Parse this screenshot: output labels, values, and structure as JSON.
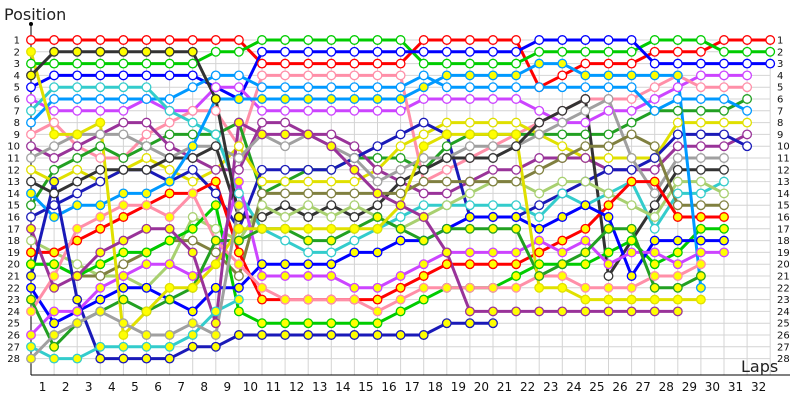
{
  "chart_data": {
    "type": "line",
    "ylabel": "Position",
    "xlabel": "Laps",
    "xlim": [
      0,
      32
    ],
    "ylim": [
      1,
      28
    ],
    "y_inverted": true,
    "grid": true,
    "x_tick_labels": [
      "1",
      "2",
      "3",
      "4",
      "5",
      "6",
      "7",
      "8",
      "9",
      "10",
      "11",
      "12",
      "13",
      "14",
      "15",
      "16",
      "17",
      "18",
      "19",
      "20",
      "21",
      "22",
      "23",
      "24",
      "25",
      "26",
      "27",
      "28",
      "29",
      "30",
      "31",
      "32"
    ],
    "y_tick_labels": [
      "1",
      "2",
      "3",
      "4",
      "5",
      "6",
      "7",
      "8",
      "9",
      "10",
      "11",
      "12",
      "13",
      "14",
      "15",
      "16",
      "17",
      "18",
      "19",
      "20",
      "21",
      "22",
      "23",
      "24",
      "25",
      "26",
      "27",
      "28"
    ],
    "series": [
      {
        "color": "#ff0000",
        "marker": "open",
        "positions": [
          1,
          1,
          1,
          1,
          1,
          1,
          1,
          1,
          1,
          1,
          3,
          3,
          3,
          3,
          3,
          3,
          3,
          1,
          1,
          1,
          1,
          1,
          5,
          4,
          3,
          3,
          3,
          2,
          2,
          2,
          1,
          1,
          1
        ]
      },
      {
        "color": "#00cc00",
        "marker": "open",
        "positions": [
          3,
          3,
          3,
          3,
          3,
          3,
          3,
          3,
          2,
          2,
          1,
          1,
          1,
          1,
          1,
          1,
          1,
          3,
          3,
          3,
          3,
          3,
          2,
          2,
          2,
          2,
          2,
          1,
          1,
          1,
          2,
          2,
          2
        ]
      },
      {
        "color": "#0000ff",
        "marker": "open",
        "positions": [
          5,
          4,
          4,
          4,
          4,
          4,
          4,
          4,
          5,
          6,
          2,
          2,
          2,
          2,
          2,
          2,
          2,
          2,
          2,
          2,
          2,
          2,
          1,
          1,
          1,
          1,
          1,
          3,
          3,
          3,
          3,
          3,
          3
        ]
      },
      {
        "color": "#cc44ff",
        "marker": "open",
        "positions": [
          6,
          7,
          7,
          7,
          7,
          6,
          7,
          7,
          5,
          5,
          7,
          7,
          7,
          7,
          7,
          7,
          7,
          6,
          6,
          6,
          6,
          6,
          7,
          8,
          8,
          7,
          7,
          6,
          5,
          4,
          4,
          4
        ]
      },
      {
        "color": "#ff8fa8",
        "marker": "open",
        "positions": [
          9,
          8,
          10,
          11,
          11,
          9,
          8,
          7,
          7,
          10,
          4,
          4,
          4,
          4,
          4,
          4,
          4,
          13,
          12,
          11,
          10,
          9,
          8,
          7,
          6,
          6,
          6,
          5,
          4,
          5,
          5,
          5
        ]
      },
      {
        "color": "#22a022",
        "marker": "open",
        "positions": [
          15,
          12,
          11,
          10,
          11,
          10,
          9,
          9,
          9,
          8,
          14,
          13,
          12,
          12,
          11,
          11,
          11,
          12,
          10,
          9,
          9,
          9,
          9,
          9,
          9,
          9,
          8,
          7,
          7,
          7,
          7,
          6
        ]
      },
      {
        "color": "#0099ff",
        "marker": "open",
        "positions": [
          8,
          6,
          6,
          6,
          6,
          6,
          6,
          5,
          4,
          4,
          5,
          5,
          5,
          5,
          5,
          5,
          5,
          4,
          5,
          5,
          5,
          5,
          5,
          5,
          5,
          5,
          5,
          7,
          6,
          6,
          6,
          7
        ]
      },
      {
        "color": "#e0e000",
        "marker": "open",
        "positions": [
          12,
          13,
          12,
          13,
          12,
          11,
          12,
          13,
          12,
          10,
          13,
          13,
          13,
          13,
          13,
          12,
          10,
          9,
          8,
          8,
          8,
          8,
          9,
          10,
          11,
          11,
          11,
          11,
          8,
          8,
          8,
          8
        ]
      },
      {
        "color": "#993399",
        "marker": "open",
        "positions": [
          10,
          11,
          10,
          9,
          8,
          8,
          10,
          11,
          12,
          12,
          8,
          8,
          9,
          9,
          10,
          12,
          13,
          14,
          14,
          13,
          12,
          12,
          11,
          11,
          11,
          12,
          12,
          12,
          10,
          10,
          10,
          9
        ]
      },
      {
        "color": "#1a1ab8",
        "marker": "open",
        "positions": [
          16,
          15,
          14,
          13,
          12,
          12,
          13,
          12,
          14,
          17,
          12,
          12,
          12,
          12,
          11,
          10,
          9,
          8,
          9,
          16,
          16,
          16,
          15,
          14,
          13,
          12,
          12,
          11,
          9,
          9,
          9,
          10
        ]
      },
      {
        "color": "#a0a0a0",
        "marker": "open",
        "positions": [
          11,
          10,
          9,
          9,
          9,
          10,
          11,
          10,
          10,
          11,
          9,
          10,
          9,
          10,
          11,
          13,
          12,
          11,
          11,
          10,
          10,
          10,
          9,
          8,
          7,
          6,
          11,
          14,
          11,
          11,
          11
        ]
      },
      {
        "color": "#333333",
        "marker": "open",
        "positions": [
          13,
          14,
          13,
          12,
          12,
          12,
          11,
          11,
          10,
          16,
          16,
          15,
          16,
          15,
          16,
          15,
          13,
          12,
          11,
          11,
          11,
          10,
          8,
          7,
          6,
          21,
          18,
          15,
          12,
          12,
          12
        ]
      },
      {
        "color": "#33cccc",
        "marker": "open",
        "positions": [
          7,
          5,
          5,
          5,
          5,
          5,
          7,
          8,
          9,
          14,
          17,
          18,
          19,
          19,
          18,
          17,
          16,
          15,
          15,
          15,
          15,
          15,
          16,
          14,
          15,
          14,
          13,
          17,
          14,
          14,
          13
        ]
      },
      {
        "color": "#a8d070",
        "marker": "open",
        "positions": [
          18,
          19,
          20,
          21,
          21,
          22,
          20,
          16,
          17,
          18,
          15,
          16,
          15,
          16,
          15,
          16,
          17,
          16,
          15,
          14,
          13,
          13,
          14,
          13,
          13,
          14,
          15,
          16,
          13,
          13,
          14
        ]
      },
      {
        "color": "#808040",
        "marker": "open",
        "positions": [
          20,
          20,
          21,
          21,
          20,
          19,
          18,
          18,
          19,
          21,
          14,
          14,
          14,
          14,
          14,
          14,
          14,
          13,
          13,
          13,
          13,
          13,
          12,
          11,
          10,
          10,
          9,
          10,
          15,
          15,
          15
        ]
      },
      {
        "color": "#ff0000",
        "marker": "filled",
        "positions": [
          19,
          19,
          18,
          17,
          16,
          15,
          14,
          14,
          13,
          19,
          23,
          23,
          23,
          23,
          23,
          23,
          22,
          21,
          20,
          20,
          20,
          20,
          19,
          18,
          17,
          15,
          13,
          13,
          16,
          16,
          16
        ]
      },
      {
        "color": "#00cc00",
        "marker": "filled",
        "positions": [
          20,
          20,
          21,
          20,
          19,
          19,
          18,
          17,
          15,
          24,
          25,
          25,
          25,
          25,
          25,
          25,
          24,
          23,
          22,
          22,
          22,
          21,
          20,
          20,
          20,
          19,
          18,
          20,
          19,
          17,
          17
        ]
      },
      {
        "color": "#0000ff",
        "marker": "filled",
        "positions": [
          22,
          25,
          24,
          23,
          22,
          22,
          23,
          24,
          22,
          22,
          20,
          20,
          20,
          20,
          19,
          19,
          18,
          18,
          17,
          16,
          16,
          16,
          17,
          16,
          15,
          16,
          21,
          18,
          18,
          18,
          18
        ]
      },
      {
        "color": "#cc44ff",
        "marker": "filled",
        "positions": [
          26,
          24,
          24,
          22,
          21,
          20,
          20,
          21,
          20,
          13,
          21,
          21,
          21,
          21,
          22,
          22,
          21,
          20,
          19,
          19,
          19,
          19,
          18,
          19,
          18,
          20,
          19,
          19,
          20,
          19,
          19
        ]
      },
      {
        "color": "#ff8fa8",
        "marker": "filled",
        "positions": [
          24,
          21,
          17,
          16,
          15,
          15,
          16,
          14,
          18,
          20,
          22,
          23,
          23,
          23,
          23,
          24,
          23,
          22,
          22,
          22,
          22,
          22,
          21,
          21,
          22,
          22,
          22,
          21,
          21,
          20
        ]
      },
      {
        "color": "#22a022",
        "marker": "filled",
        "positions": [
          23,
          27,
          25,
          24,
          23,
          24,
          23,
          22,
          18,
          18,
          17,
          17,
          18,
          18,
          17,
          16,
          17,
          18,
          17,
          17,
          17,
          17,
          21,
          20,
          19,
          17,
          17,
          22,
          22,
          21
        ]
      },
      {
        "color": "#0099ff",
        "marker": "filled",
        "positions": [
          14,
          16,
          15,
          15,
          14,
          14,
          13,
          10,
          6,
          6,
          6,
          6,
          6,
          6,
          6,
          6,
          6,
          5,
          4,
          4,
          4,
          4,
          3,
          3,
          4,
          4,
          4,
          4,
          4,
          22
        ]
      },
      {
        "color": "#e0e000",
        "marker": "filled",
        "positions": [
          2,
          9,
          9,
          8,
          26,
          24,
          22,
          22,
          20,
          17,
          17,
          17,
          17,
          17,
          17,
          17,
          15,
          10,
          9,
          9,
          9,
          9,
          22,
          22,
          23,
          23,
          23,
          23,
          23,
          23
        ]
      },
      {
        "color": "#993399",
        "marker": "filled",
        "positions": [
          17,
          22,
          21,
          19,
          18,
          17,
          17,
          19,
          25,
          8,
          9,
          9,
          9,
          10,
          12,
          14,
          15,
          16,
          19,
          24,
          24,
          24,
          24,
          24,
          24,
          24,
          24,
          24,
          24
        ]
      },
      {
        "color": "#1a1ab8",
        "marker": "filled",
        "positions": [
          21,
          13,
          23,
          28,
          28,
          28,
          28,
          27,
          27,
          26,
          26,
          26,
          26,
          26,
          26,
          26,
          26,
          26,
          25,
          25,
          25
        ]
      },
      {
        "color": "#333333",
        "marker": "filled",
        "positions": [
          4,
          2,
          2,
          2,
          2,
          2,
          2,
          2,
          6,
          16
        ]
      },
      {
        "color": "#33cccc",
        "marker": "filled",
        "positions": [
          27,
          28,
          28,
          27,
          27,
          27,
          27,
          26,
          24,
          23
        ]
      },
      {
        "color": "#a0a0a0",
        "marker": "filled",
        "positions": [
          28,
          26,
          25,
          24,
          25,
          26,
          26,
          25,
          26,
          15
        ]
      }
    ]
  }
}
